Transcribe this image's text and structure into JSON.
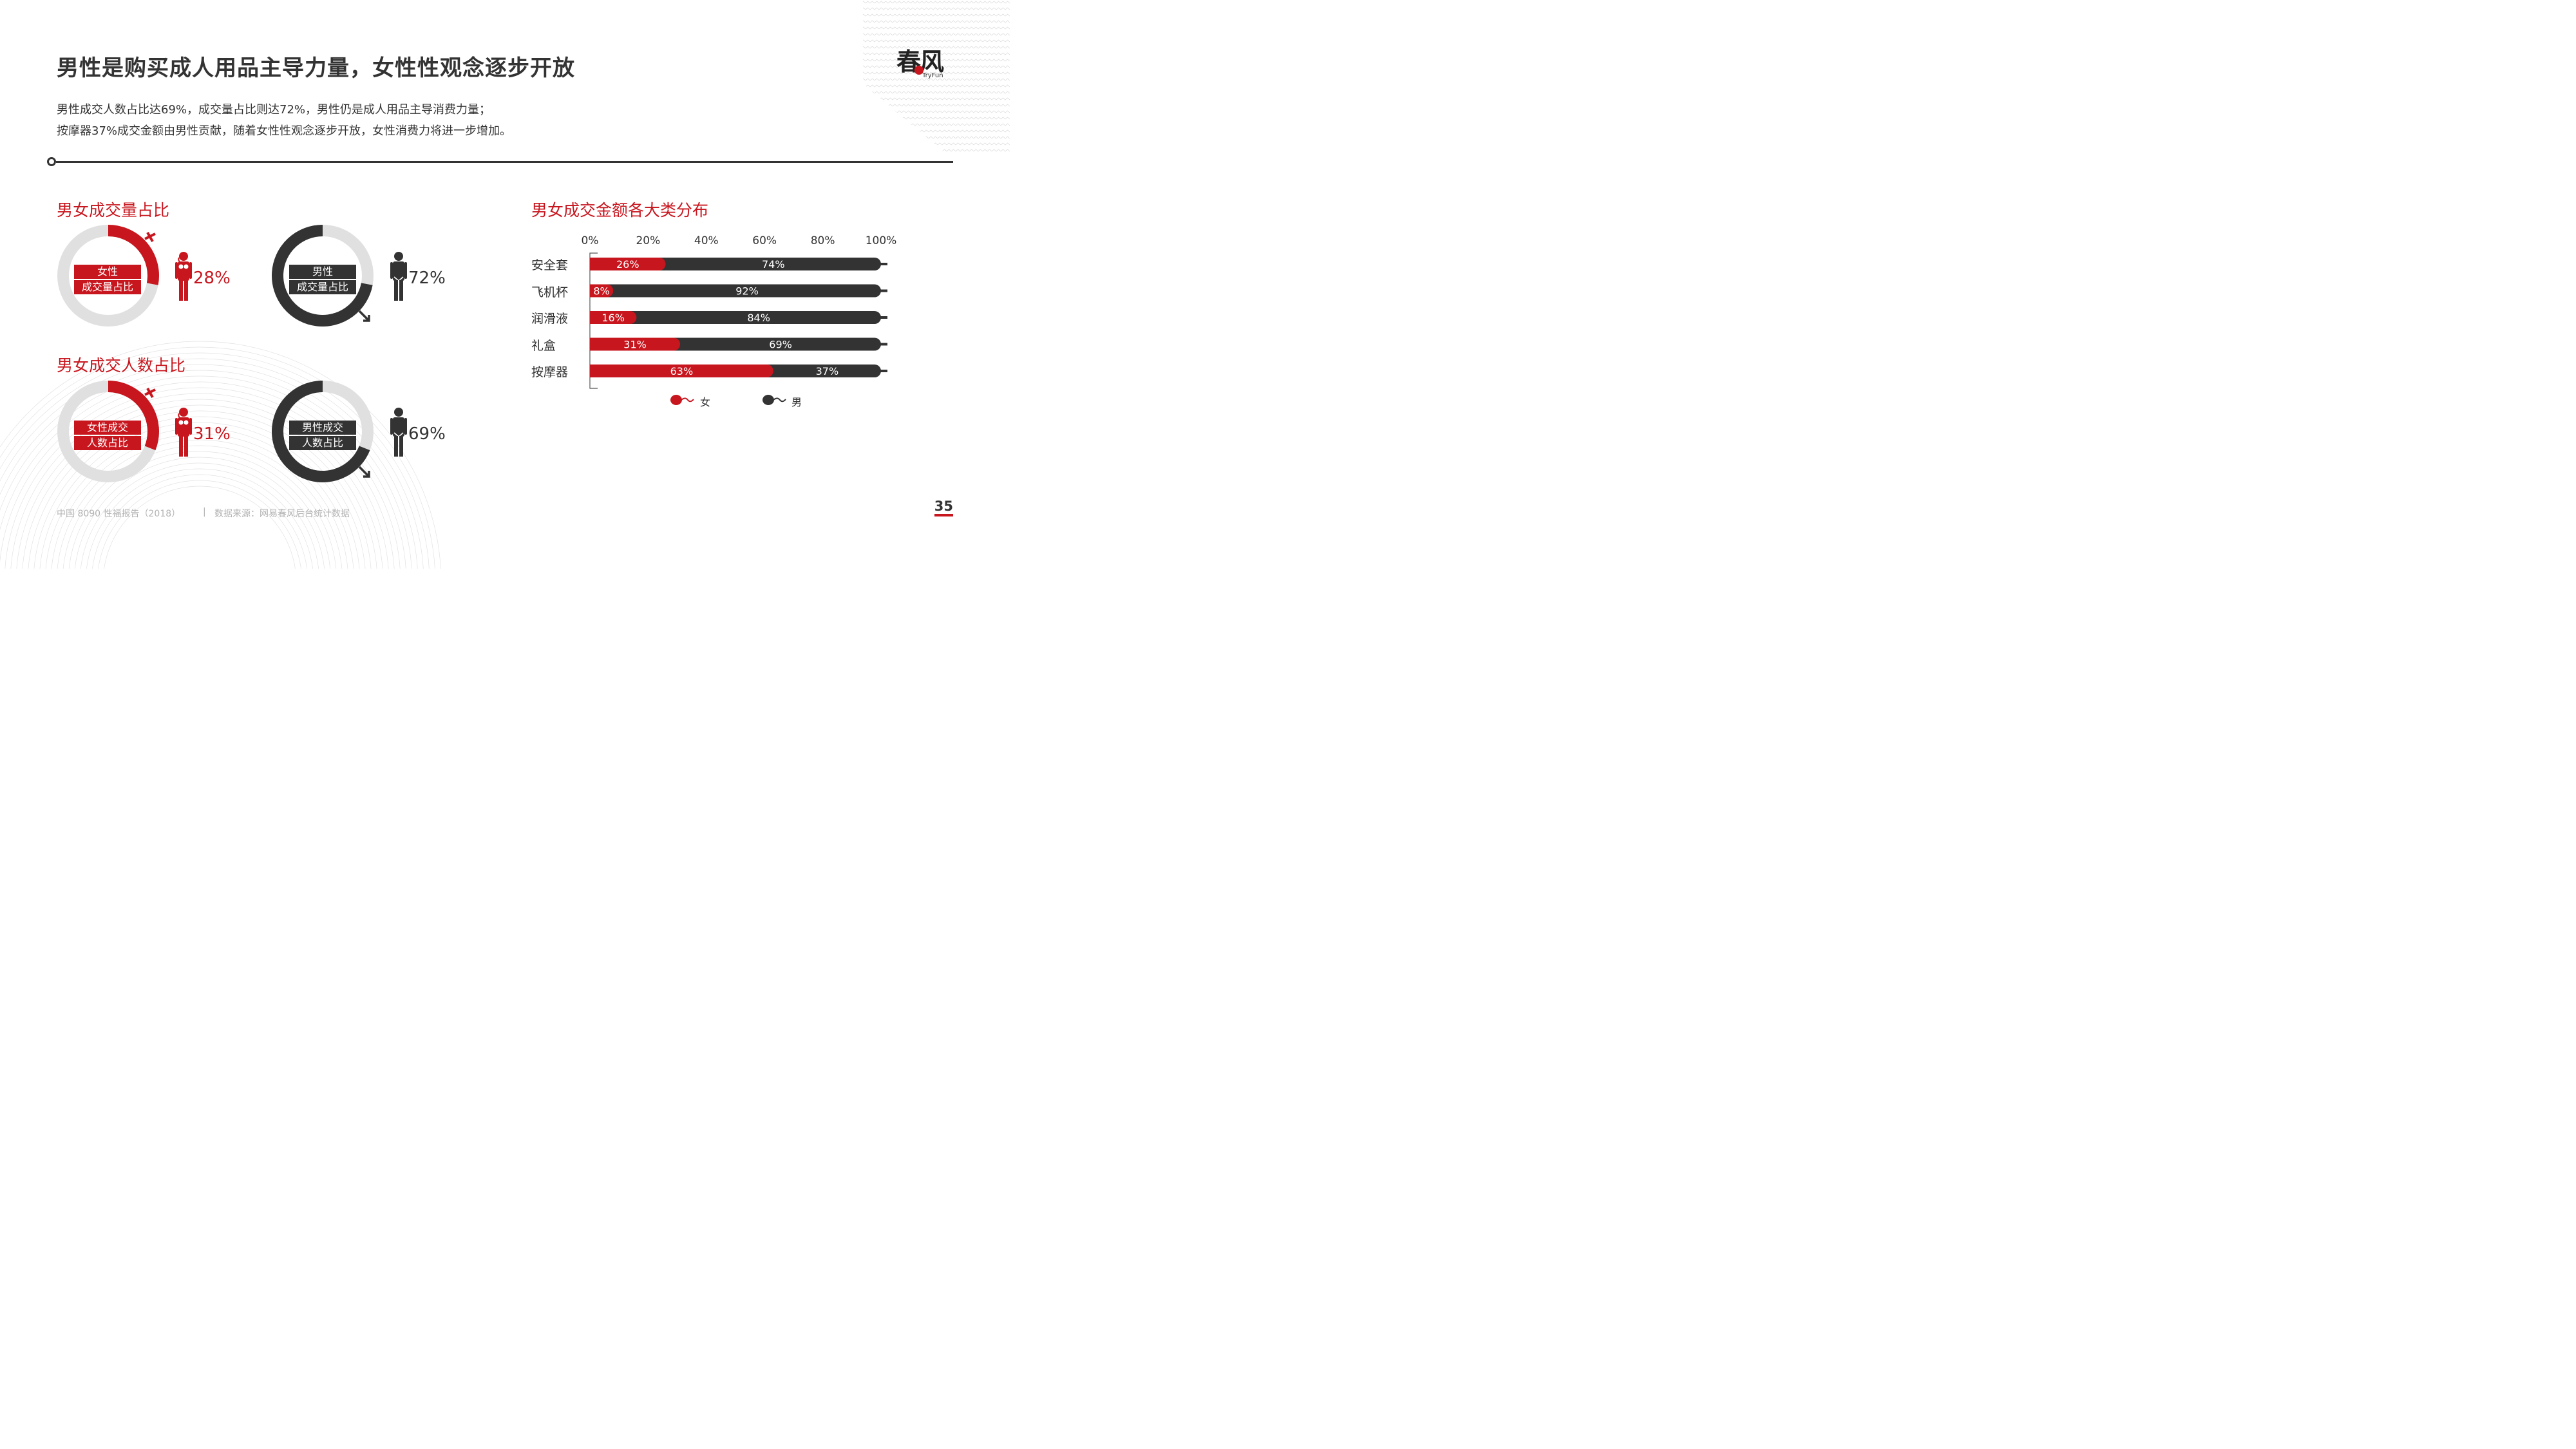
{
  "header": {
    "title": "男性是购买成人用品主导力量，女性性观念逐步开放",
    "subtitle_line1": "男性成交人数占比达69%，成交量占比则达72%，男性仍是成人用品主导消费力量；",
    "subtitle_line2": "按摩器37%成交金额由男性贡献，随着女性性观念逐步开放，女性消费力将进一步增加。"
  },
  "logo": {
    "text": "春风",
    "sub": "TryFun"
  },
  "section_volume": {
    "title": "男女成交量占比",
    "female": {
      "label_line1": "女性",
      "label_line2": "成交量占比",
      "value": "28%"
    },
    "male": {
      "label_line1": "男性",
      "label_line2": "成交量占比",
      "value": "72%"
    }
  },
  "section_buyers": {
    "title": "男女成交人数占比",
    "female": {
      "label_line1": "女性成交",
      "label_line2": "人数占比",
      "value": "31%"
    },
    "male": {
      "label_line1": "男性成交",
      "label_line2": "人数占比",
      "value": "69%"
    }
  },
  "section_categories": {
    "title": "男女成交金额各大类分布"
  },
  "colors": {
    "red": "#c8161e",
    "dark": "#333333",
    "ring_bg": "#e0e0e0"
  },
  "chart_data": [
    {
      "type": "pie",
      "title": "男女成交量占比",
      "subtype": "donut",
      "labels": [
        "女性",
        "男性"
      ],
      "values": [
        28,
        72
      ]
    },
    {
      "type": "pie",
      "title": "男女成交人数占比",
      "subtype": "donut",
      "labels": [
        "女性",
        "男性"
      ],
      "values": [
        31,
        69
      ]
    },
    {
      "type": "bar",
      "orientation": "horizontal",
      "stacked": true,
      "title": "男女成交金额各大类分布",
      "categories": [
        "安全套",
        "飞机杯",
        "润滑液",
        "礼盒",
        "按摩器"
      ],
      "series": [
        {
          "name": "女",
          "values": [
            26,
            8,
            16,
            31,
            63
          ]
        },
        {
          "name": "男",
          "values": [
            74,
            92,
            84,
            69,
            37
          ]
        }
      ],
      "x_ticks": [
        "0%",
        "20%",
        "40%",
        "60%",
        "80%",
        "100%"
      ],
      "xlim": [
        0,
        100
      ],
      "legend": "bottom"
    }
  ],
  "footer": {
    "report": "中国 8090 性福报告（2018）",
    "separator": "|",
    "source": "数据来源：网易春风后台统计数据",
    "page": "35"
  }
}
